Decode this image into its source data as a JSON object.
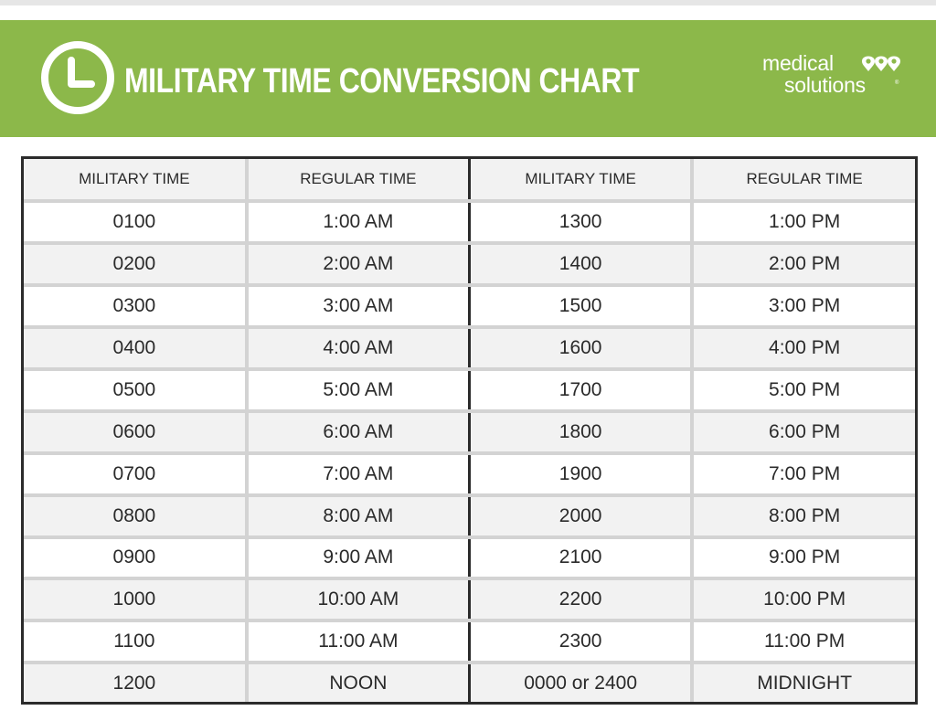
{
  "header": {
    "title": "MILITARY TIME CONVERSION CHART",
    "logo_line1": "medical",
    "logo_line2": "solutions",
    "logo_reg": "®",
    "banner_color": "#8cb84a",
    "clock_icon": "clock-icon",
    "logo_icon": "heart-map-pins-icon"
  },
  "table": {
    "headers": [
      "MILITARY TIME",
      "REGULAR TIME",
      "MILITARY TIME",
      "REGULAR TIME"
    ],
    "rows": [
      [
        "0100",
        "1:00 AM",
        "1300",
        "1:00 PM"
      ],
      [
        "0200",
        "2:00 AM",
        "1400",
        "2:00 PM"
      ],
      [
        "0300",
        "3:00 AM",
        "1500",
        "3:00 PM"
      ],
      [
        "0400",
        "4:00 AM",
        "1600",
        "4:00 PM"
      ],
      [
        "0500",
        "5:00 AM",
        "1700",
        "5:00 PM"
      ],
      [
        "0600",
        "6:00 AM",
        "1800",
        "6:00 PM"
      ],
      [
        "0700",
        "7:00 AM",
        "1900",
        "7:00 PM"
      ],
      [
        "0800",
        "8:00 AM",
        "2000",
        "8:00 PM"
      ],
      [
        "0900",
        "9:00 AM",
        "2100",
        "9:00 PM"
      ],
      [
        "1000",
        "10:00 AM",
        "2200",
        "10:00 PM"
      ],
      [
        "1100",
        "11:00 AM",
        "2300",
        "11:00 PM"
      ],
      [
        "1200",
        "NOON",
        "0000 or 2400",
        "MIDNIGHT"
      ]
    ]
  }
}
